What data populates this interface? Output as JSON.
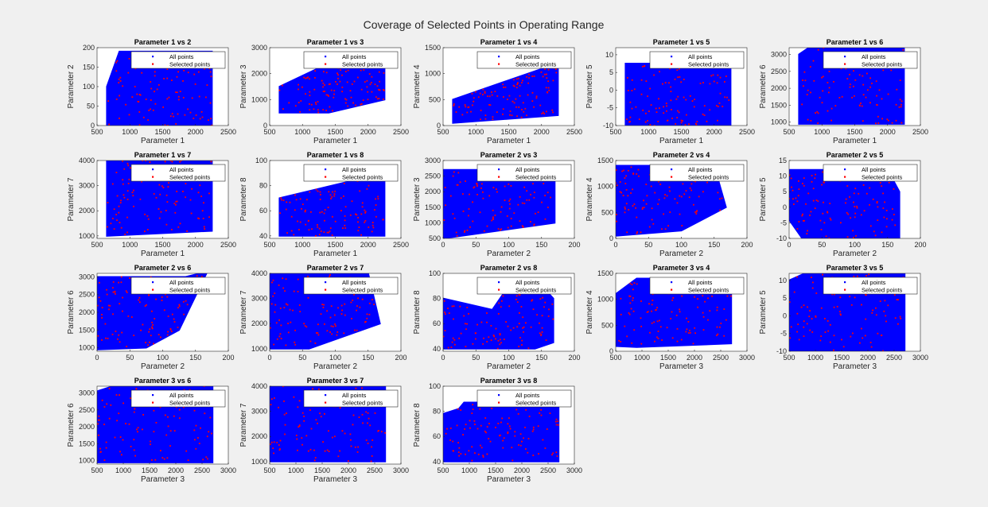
{
  "figure": {
    "title": "Coverage of Selected Points in Operating Range",
    "background": "#f0f0f0"
  },
  "colors": {
    "all_points": "#0000ff",
    "selected_points": "#ff0000",
    "axes_bg": "#ffffff",
    "text": "#262626"
  },
  "legend_entries": [
    "All points",
    "Selected points"
  ],
  "chart_data": [
    {
      "type": "scatter",
      "title": "Parameter 1 vs 2",
      "xlabel": "Parameter 1",
      "ylabel": "Parameter 2",
      "xlim": [
        500,
        2500
      ],
      "ylim": [
        0,
        200
      ],
      "xticks": [
        500,
        1000,
        1500,
        2000,
        2500
      ],
      "yticks": [
        0,
        50,
        100,
        150,
        200
      ],
      "series": [
        {
          "name": "All points",
          "region": [
            [
              650,
              100
            ],
            [
              840,
              190
            ],
            [
              2250,
              190
            ],
            [
              2250,
              0
            ],
            [
              650,
              0
            ]
          ]
        },
        {
          "name": "Selected points",
          "count": 110
        }
      ]
    },
    {
      "type": "scatter",
      "title": "Parameter 1 vs 3",
      "xlabel": "Parameter 1",
      "ylabel": "Parameter 3",
      "xlim": [
        500,
        2500
      ],
      "ylim": [
        0,
        3000
      ],
      "xticks": [
        500,
        1000,
        1500,
        2000,
        2500
      ],
      "yticks": [
        0,
        1000,
        2000,
        3000
      ],
      "series": [
        {
          "name": "All points",
          "region": [
            [
              650,
              1500
            ],
            [
              1400,
              2400
            ],
            [
              2250,
              2400
            ],
            [
              2250,
              1000
            ],
            [
              1400,
              500
            ],
            [
              650,
              500
            ]
          ]
        },
        {
          "name": "Selected points",
          "count": 110
        }
      ]
    },
    {
      "type": "scatter",
      "title": "Parameter 1 vs 4",
      "xlabel": "Parameter 1",
      "ylabel": "Parameter 4",
      "xlim": [
        500,
        2500
      ],
      "ylim": [
        0,
        1500
      ],
      "xticks": [
        500,
        1000,
        1500,
        2000,
        2500
      ],
      "yticks": [
        0,
        500,
        1000,
        1500
      ],
      "series": [
        {
          "name": "All points",
          "region": [
            [
              650,
              500
            ],
            [
              2250,
              1200
            ],
            [
              2250,
              200
            ],
            [
              650,
              50
            ]
          ]
        },
        {
          "name": "Selected points",
          "count": 110
        }
      ]
    },
    {
      "type": "scatter",
      "title": "Parameter 1 vs 5",
      "xlabel": "Parameter 1",
      "ylabel": "Parameter 5",
      "xlim": [
        500,
        2500
      ],
      "ylim": [
        -10,
        12
      ],
      "xticks": [
        500,
        1000,
        1500,
        2000,
        2500
      ],
      "yticks": [
        -10,
        -5,
        0,
        5,
        10
      ],
      "series": [
        {
          "name": "All points",
          "region": [
            [
              650,
              7.5
            ],
            [
              2250,
              7.5
            ],
            [
              2250,
              -10
            ],
            [
              650,
              -10
            ]
          ]
        },
        {
          "name": "Selected points",
          "count": 110
        }
      ]
    },
    {
      "type": "scatter",
      "title": "Parameter 1 vs 6",
      "xlabel": "Parameter 1",
      "ylabel": "Parameter 6",
      "xlim": [
        500,
        2500
      ],
      "ylim": [
        900,
        3200
      ],
      "xticks": [
        500,
        1000,
        1500,
        2000,
        2500
      ],
      "yticks": [
        1000,
        1500,
        2000,
        2500,
        3000
      ],
      "series": [
        {
          "name": "All points",
          "region": [
            [
              650,
              3000
            ],
            [
              800,
              3200
            ],
            [
              2250,
              3200
            ],
            [
              2250,
              950
            ],
            [
              650,
              950
            ]
          ]
        },
        {
          "name": "Selected points",
          "count": 110
        }
      ]
    },
    {
      "type": "scatter",
      "title": "Parameter 1 vs 7",
      "xlabel": "Parameter 1",
      "ylabel": "Parameter 7",
      "xlim": [
        500,
        2500
      ],
      "ylim": [
        900,
        4000
      ],
      "xticks": [
        500,
        1000,
        1500,
        2000,
        2500
      ],
      "yticks": [
        1000,
        2000,
        3000,
        4000
      ],
      "series": [
        {
          "name": "All points",
          "region": [
            [
              650,
              4000
            ],
            [
              2250,
              4000
            ],
            [
              2250,
              1200
            ],
            [
              650,
              1000
            ]
          ]
        },
        {
          "name": "Selected points",
          "count": 110
        }
      ]
    },
    {
      "type": "scatter",
      "title": "Parameter 1 vs 8",
      "xlabel": "Parameter 1",
      "ylabel": "Parameter 8",
      "xlim": [
        500,
        2500
      ],
      "ylim": [
        38,
        100
      ],
      "xticks": [
        500,
        1000,
        1500,
        2000,
        2500
      ],
      "yticks": [
        40,
        60,
        80,
        100
      ],
      "series": [
        {
          "name": "All points",
          "region": [
            [
              650,
              70
            ],
            [
              2250,
              90
            ],
            [
              2250,
              40
            ],
            [
              650,
              40
            ]
          ]
        },
        {
          "name": "Selected points",
          "count": 110
        }
      ]
    },
    {
      "type": "scatter",
      "title": "Parameter 2 vs 3",
      "xlabel": "Parameter 2",
      "ylabel": "Parameter 3",
      "xlim": [
        0,
        200
      ],
      "ylim": [
        500,
        3000
      ],
      "xticks": [
        0,
        50,
        100,
        150,
        200
      ],
      "yticks": [
        500,
        1000,
        1500,
        2000,
        2500,
        3000
      ],
      "series": [
        {
          "name": "All points",
          "region": [
            [
              0,
              2700
            ],
            [
              170,
              2700
            ],
            [
              170,
              1000
            ],
            [
              0,
              500
            ]
          ]
        },
        {
          "name": "Selected points",
          "count": 110
        }
      ]
    },
    {
      "type": "scatter",
      "title": "Parameter 2 vs 4",
      "xlabel": "Parameter 2",
      "ylabel": "Parameter 4",
      "xlim": [
        0,
        200
      ],
      "ylim": [
        0,
        1500
      ],
      "xticks": [
        0,
        50,
        100,
        150,
        200
      ],
      "yticks": [
        0,
        500,
        1000,
        1500
      ],
      "series": [
        {
          "name": "All points",
          "region": [
            [
              0,
              1400
            ],
            [
              150,
              1400
            ],
            [
              168,
              600
            ],
            [
              100,
              150
            ],
            [
              0,
              50
            ]
          ]
        },
        {
          "name": "Selected points",
          "count": 110
        }
      ]
    },
    {
      "type": "scatter",
      "title": "Parameter 2 vs 5",
      "xlabel": "Parameter 2",
      "ylabel": "Parameter 5",
      "xlim": [
        0,
        200
      ],
      "ylim": [
        -10,
        15
      ],
      "xticks": [
        0,
        50,
        100,
        150,
        200
      ],
      "yticks": [
        -10,
        -5,
        0,
        5,
        10,
        15
      ],
      "series": [
        {
          "name": "All points",
          "region": [
            [
              0,
              12
            ],
            [
              150,
              12
            ],
            [
              168,
              5
            ],
            [
              168,
              -10
            ],
            [
              20,
              -10
            ],
            [
              0,
              -4
            ]
          ]
        },
        {
          "name": "Selected points",
          "count": 110
        }
      ]
    },
    {
      "type": "scatter",
      "title": "Parameter 2 vs 6",
      "xlabel": "Parameter 2",
      "ylabel": "Parameter 6",
      "xlim": [
        0,
        200
      ],
      "ylim": [
        900,
        3100
      ],
      "xticks": [
        0,
        50,
        100,
        150,
        200
      ],
      "yticks": [
        1000,
        1500,
        2000,
        2500,
        3000
      ],
      "series": [
        {
          "name": "All points",
          "region": [
            [
              0,
              3000
            ],
            [
              135,
              3000
            ],
            [
              168,
              3150
            ],
            [
              125,
              1500
            ],
            [
              75,
              1000
            ],
            [
              0,
              950
            ]
          ]
        },
        {
          "name": "Selected points",
          "count": 110
        }
      ]
    },
    {
      "type": "scatter",
      "title": "Parameter 2 vs 7",
      "xlabel": "Parameter 2",
      "ylabel": "Parameter 7",
      "xlim": [
        0,
        200
      ],
      "ylim": [
        900,
        4000
      ],
      "xticks": [
        0,
        50,
        100,
        150,
        200
      ],
      "yticks": [
        1000,
        2000,
        3000,
        4000
      ],
      "series": [
        {
          "name": "All points",
          "region": [
            [
              0,
              4000
            ],
            [
              150,
              4000
            ],
            [
              168,
              2000
            ],
            [
              60,
              1000
            ],
            [
              0,
              1000
            ]
          ]
        },
        {
          "name": "Selected points",
          "count": 110
        }
      ]
    },
    {
      "type": "scatter",
      "title": "Parameter 2 vs 8",
      "xlabel": "Parameter 2",
      "ylabel": "Parameter 8",
      "xlim": [
        0,
        200
      ],
      "ylim": [
        38,
        100
      ],
      "xticks": [
        0,
        50,
        100,
        150,
        200
      ],
      "yticks": [
        40,
        60,
        80,
        100
      ],
      "series": [
        {
          "name": "All points",
          "region": [
            [
              0,
              80
            ],
            [
              75,
              71
            ],
            [
              100,
              90
            ],
            [
              150,
              90
            ],
            [
              168,
              80
            ],
            [
              168,
              45
            ],
            [
              140,
              40
            ],
            [
              0,
              40
            ]
          ]
        },
        {
          "name": "Selected points",
          "count": 110
        }
      ]
    },
    {
      "type": "scatter",
      "title": "Parameter 3 vs 4",
      "xlabel": "Parameter 3",
      "ylabel": "Parameter 4",
      "xlim": [
        500,
        3000
      ],
      "ylim": [
        0,
        1500
      ],
      "xticks": [
        500,
        1000,
        1500,
        2000,
        2500,
        3000
      ],
      "yticks": [
        0,
        500,
        1000,
        1500
      ],
      "series": [
        {
          "name": "All points",
          "region": [
            [
              500,
              1100
            ],
            [
              900,
              1400
            ],
            [
              2700,
              1400
            ],
            [
              2700,
              150
            ],
            [
              900,
              80
            ],
            [
              500,
              100
            ]
          ]
        },
        {
          "name": "Selected points",
          "count": 110
        }
      ]
    },
    {
      "type": "scatter",
      "title": "Parameter 3 vs 5",
      "xlabel": "Parameter 3",
      "ylabel": "Parameter 5",
      "xlim": [
        500,
        3000
      ],
      "ylim": [
        -10,
        12
      ],
      "xticks": [
        500,
        1000,
        1500,
        2000,
        2500,
        3000
      ],
      "yticks": [
        -10,
        -5,
        0,
        5,
        10
      ],
      "series": [
        {
          "name": "All points",
          "region": [
            [
              500,
              10
            ],
            [
              800,
              12
            ],
            [
              2700,
              12
            ],
            [
              2700,
              -10
            ],
            [
              500,
              -10
            ]
          ]
        },
        {
          "name": "Selected points",
          "count": 110
        }
      ]
    },
    {
      "type": "scatter",
      "title": "Parameter 3 vs 6",
      "xlabel": "Parameter 3",
      "ylabel": "Parameter 6",
      "xlim": [
        500,
        3000
      ],
      "ylim": [
        900,
        3200
      ],
      "xticks": [
        500,
        1000,
        1500,
        2000,
        2500,
        3000
      ],
      "yticks": [
        1000,
        1500,
        2000,
        2500,
        3000
      ],
      "series": [
        {
          "name": "All points",
          "region": [
            [
              500,
              3050
            ],
            [
              800,
              3200
            ],
            [
              2700,
              3200
            ],
            [
              2700,
              950
            ],
            [
              500,
              950
            ]
          ]
        },
        {
          "name": "Selected points",
          "count": 110
        }
      ]
    },
    {
      "type": "scatter",
      "title": "Parameter 3 vs 7",
      "xlabel": "Parameter 3",
      "ylabel": "Parameter 7",
      "xlim": [
        500,
        3000
      ],
      "ylim": [
        900,
        4000
      ],
      "xticks": [
        500,
        1000,
        1500,
        2000,
        2500,
        3000
      ],
      "yticks": [
        1000,
        2000,
        3000,
        4000
      ],
      "series": [
        {
          "name": "All points",
          "region": [
            [
              500,
              4000
            ],
            [
              2700,
              4000
            ],
            [
              2700,
              1000
            ],
            [
              500,
              1000
            ]
          ]
        },
        {
          "name": "Selected points",
          "count": 110
        }
      ]
    },
    {
      "type": "scatter",
      "title": "Parameter 3 vs 8",
      "xlabel": "Parameter 3",
      "ylabel": "Parameter 8",
      "xlim": [
        500,
        3000
      ],
      "ylim": [
        38,
        100
      ],
      "xticks": [
        500,
        1000,
        1500,
        2000,
        2500,
        3000
      ],
      "yticks": [
        40,
        60,
        80,
        100
      ],
      "series": [
        {
          "name": "All points",
          "region": [
            [
              500,
              78
            ],
            [
              800,
              82
            ],
            [
              900,
              87
            ],
            [
              2700,
              87
            ],
            [
              2700,
              40
            ],
            [
              500,
              40
            ]
          ]
        },
        {
          "name": "Selected points",
          "count": 110
        }
      ]
    }
  ]
}
